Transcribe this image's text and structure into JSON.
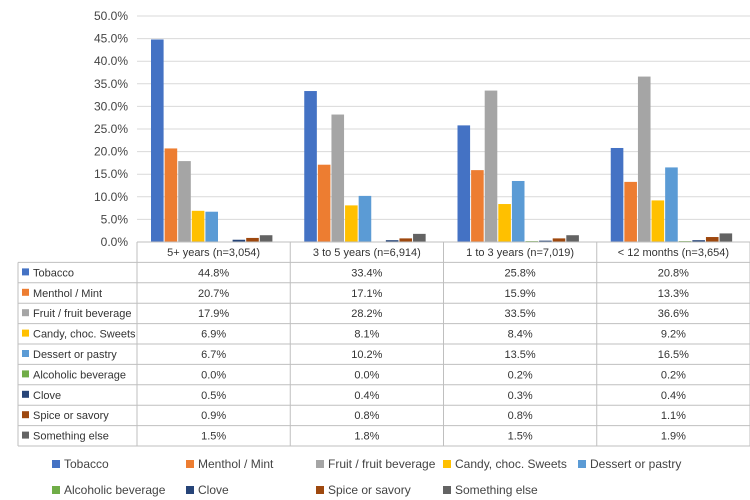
{
  "chart_data": {
    "type": "bar",
    "title": "",
    "xlabel": "",
    "ylabel": "",
    "ylim": [
      0,
      50
    ],
    "yticks": [
      "0.0%",
      "5.0%",
      "10.0%",
      "15.0%",
      "20.0%",
      "25.0%",
      "30.0%",
      "35.0%",
      "40.0%",
      "45.0%",
      "50.0%"
    ],
    "grid": true,
    "legend_position": "bottom",
    "categories": [
      "5+ years (n=3,054)",
      "3 to 5 years (n=6,914)",
      "1 to 3 years (n=7,019)",
      "< 12 months (n=3,654)"
    ],
    "series": [
      {
        "name": "Tobacco",
        "color": "#4472C4",
        "values": [
          44.8,
          33.4,
          25.8,
          20.8
        ],
        "labels": [
          "44.8%",
          "33.4%",
          "25.8%",
          "20.8%"
        ]
      },
      {
        "name": "Menthol / Mint",
        "color": "#ED7D31",
        "values": [
          20.7,
          17.1,
          15.9,
          13.3
        ],
        "labels": [
          "20.7%",
          "17.1%",
          "15.9%",
          "13.3%"
        ]
      },
      {
        "name": "Fruit / fruit beverage",
        "color": "#A5A5A5",
        "values": [
          17.9,
          28.2,
          33.5,
          36.6
        ],
        "labels": [
          "17.9%",
          "28.2%",
          "33.5%",
          "36.6%"
        ]
      },
      {
        "name": "Candy, choc. Sweets",
        "color": "#FFC000",
        "values": [
          6.9,
          8.1,
          8.4,
          9.2
        ],
        "labels": [
          "6.9%",
          "8.1%",
          "8.4%",
          "9.2%"
        ]
      },
      {
        "name": "Dessert or pastry",
        "color": "#5B9BD5",
        "values": [
          6.7,
          10.2,
          13.5,
          16.5
        ],
        "labels": [
          "6.7%",
          "10.2%",
          "13.5%",
          "16.5%"
        ]
      },
      {
        "name": "Alcoholic beverage",
        "color": "#70AD47",
        "values": [
          0.0,
          0.0,
          0.2,
          0.2
        ],
        "labels": [
          "0.0%",
          "0.0%",
          "0.2%",
          "0.2%"
        ]
      },
      {
        "name": "Clove",
        "color": "#264478",
        "values": [
          0.5,
          0.4,
          0.3,
          0.4
        ],
        "labels": [
          "0.5%",
          "0.4%",
          "0.3%",
          "0.4%"
        ]
      },
      {
        "name": "Spice or savory",
        "color": "#9E480E",
        "values": [
          0.9,
          0.8,
          0.8,
          1.1
        ],
        "labels": [
          "0.9%",
          "0.8%",
          "0.8%",
          "1.1%"
        ]
      },
      {
        "name": "Something else",
        "color": "#636363",
        "values": [
          1.5,
          1.8,
          1.5,
          1.9
        ],
        "labels": [
          "1.5%",
          "1.8%",
          "1.5%",
          "1.9%"
        ]
      }
    ]
  }
}
